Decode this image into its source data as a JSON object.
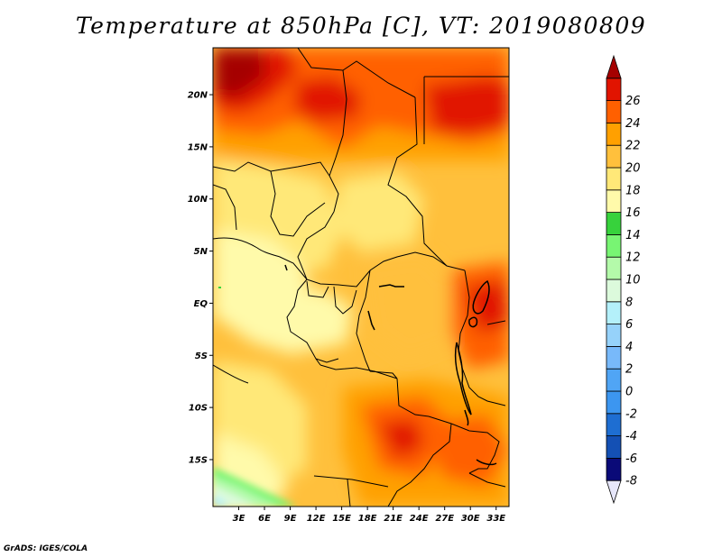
{
  "title": "Temperature at 850hPa [C], VT: 2019080809",
  "credit": "GrADS: IGES/COLA",
  "chart_data": {
    "type": "heatmap",
    "variable": "Temperature at 850hPa",
    "units": "C",
    "valid_time": "2019080809",
    "lon_range": [
      0,
      34.5
    ],
    "lat_range": [
      -19.5,
      24.5
    ],
    "x_ticks": [
      {
        "value": 3,
        "label": "3E"
      },
      {
        "value": 6,
        "label": "6E"
      },
      {
        "value": 9,
        "label": "9E"
      },
      {
        "value": 12,
        "label": "12E"
      },
      {
        "value": 15,
        "label": "15E"
      },
      {
        "value": 18,
        "label": "18E"
      },
      {
        "value": 21,
        "label": "21E"
      },
      {
        "value": 24,
        "label": "24E"
      },
      {
        "value": 27,
        "label": "27E"
      },
      {
        "value": 30,
        "label": "30E"
      },
      {
        "value": 33,
        "label": "33E"
      }
    ],
    "y_ticks": [
      {
        "value": 20,
        "label": "20N"
      },
      {
        "value": 15,
        "label": "15N"
      },
      {
        "value": 10,
        "label": "10N"
      },
      {
        "value": 5,
        "label": "5N"
      },
      {
        "value": 0,
        "label": "EQ"
      },
      {
        "value": -5,
        "label": "5S"
      },
      {
        "value": -10,
        "label": "10S"
      },
      {
        "value": -15,
        "label": "15S"
      }
    ],
    "colorbar": {
      "levels": [
        -8,
        -6,
        -4,
        -2,
        0,
        2,
        4,
        6,
        8,
        10,
        12,
        14,
        16,
        18,
        20,
        22,
        24,
        26
      ],
      "labels": [
        "-8",
        "-6",
        "-4",
        "-2",
        "0",
        "2",
        "4",
        "6",
        "8",
        "10",
        "12",
        "14",
        "16",
        "18",
        "20",
        "22",
        "24",
        "26"
      ],
      "colors": [
        "#e6e6fa",
        "#0a0a78",
        "#1450b4",
        "#1e6ed2",
        "#3c96f0",
        "#50a5f5",
        "#78b9fa",
        "#96d2fa",
        "#b4f0fa",
        "#dcfadc",
        "#b4faaa",
        "#78f573",
        "#37d23c",
        "#fffaaa",
        "#ffe878",
        "#ffc03c",
        "#ffa000",
        "#ff6000",
        "#e11400",
        "#a50000"
      ]
    }
  }
}
